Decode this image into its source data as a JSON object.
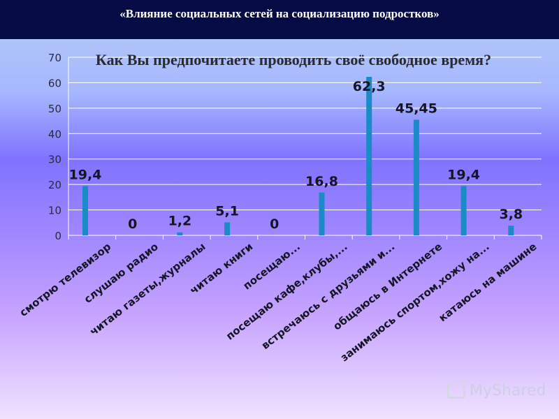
{
  "header": {
    "title": "«Влияние социальных сетей на социализацию подростков»"
  },
  "watermark": {
    "text": "MyShared"
  },
  "chart_data": {
    "type": "bar",
    "title": "Как Вы предпочитаете проводить своё свободное время?",
    "xlabel": "",
    "ylabel": "",
    "ylim": [
      0,
      70
    ],
    "yticks": [
      0,
      10,
      20,
      30,
      40,
      50,
      60,
      70
    ],
    "grid": true,
    "legend": "none",
    "bar_color": "#1a8bc4",
    "categories": [
      "смотрю телевизор",
      "слушаю радио",
      "читаю газеты,журналы",
      "читаю книги",
      "посещаю...",
      "посещаю кафе,клубы,...",
      "встречаюсь с друзьями и...",
      "общаюсь в Интернете",
      "занимаюсь спортом,хожу на...",
      "катаюсь на машине"
    ],
    "values": [
      19.4,
      0,
      1.2,
      5.1,
      0,
      16.8,
      62.3,
      45.45,
      19.4,
      3.8
    ],
    "data_labels": [
      "19,4",
      "0",
      "1,2",
      "5,1",
      "0",
      "16,8",
      "62,3",
      "45,45",
      "19,4",
      "3,8"
    ]
  }
}
